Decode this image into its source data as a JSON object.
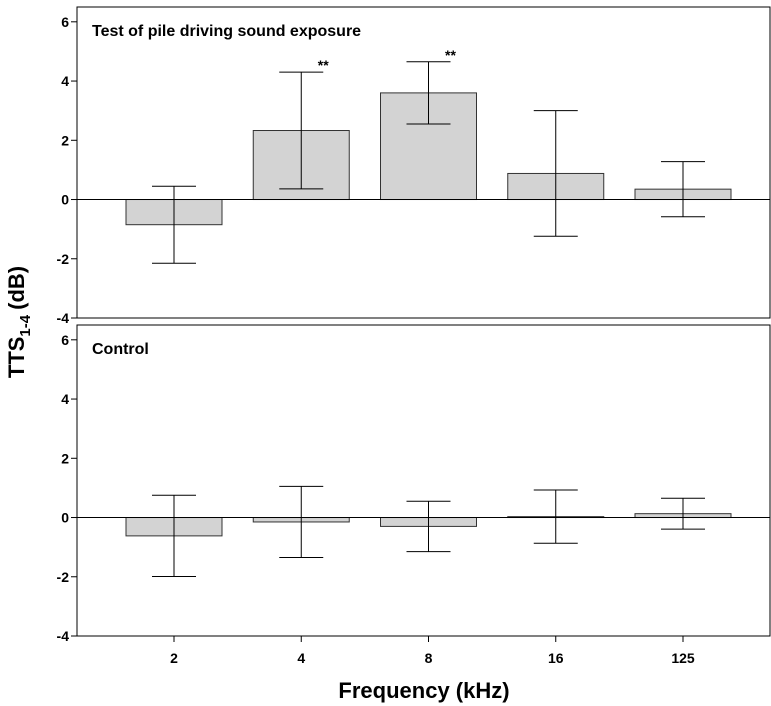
{
  "chart_data": [
    {
      "type": "bar",
      "title": "Test of pile driving sound exposure",
      "values": [
        -0.85,
        2.33,
        3.6,
        0.88,
        0.35
      ],
      "errors": [
        1.3,
        1.97,
        1.05,
        2.12,
        0.93
      ],
      "value_annotations": [
        null,
        "**",
        "**",
        null,
        null
      ],
      "color": "#d3d3d3",
      "ylim": [
        -4,
        6.5
      ],
      "yticks": [
        -4,
        -2,
        0,
        2,
        4,
        6
      ],
      "ylabel": {
        "main": "TTS",
        "sub": "1-4",
        "unit": "(dB)"
      }
    },
    {
      "type": "bar",
      "title": "Control",
      "categories": [
        "2",
        "4",
        "8",
        "16",
        "125"
      ],
      "values": [
        -0.62,
        -0.15,
        -0.3,
        0.03,
        0.13
      ],
      "errors": [
        1.37,
        1.2,
        0.85,
        0.9,
        0.52
      ],
      "color": "#d3d3d3",
      "ylim": [
        -4,
        6.5
      ],
      "yticks": [
        -4,
        -2,
        0,
        2,
        4,
        6
      ],
      "xlabel": "Frequency (kHz)"
    }
  ]
}
